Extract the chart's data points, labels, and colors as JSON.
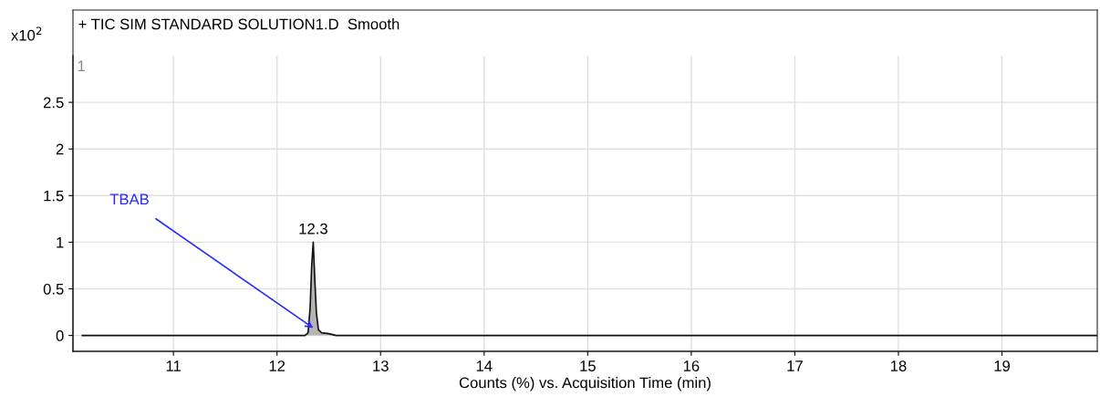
{
  "chart_data": {
    "type": "area",
    "title": "+ TIC SIM STANDARD SOLUTION1.D  Smooth",
    "xlabel": "Counts (%) vs. Acquisition Time (min)",
    "ylabel": "x10$^{2}$",
    "x": [
      10.12,
      12.27,
      12.3,
      12.32,
      12.335,
      12.35,
      12.365,
      12.38,
      12.4,
      12.43,
      12.5,
      12.57,
      19.92
    ],
    "series": [
      {
        "color": "#b4b4b4",
        "values": [
          0,
          0,
          0.03,
          0.3,
          0.75,
          1.0,
          0.6,
          0.25,
          0.06,
          0.03,
          0.02,
          0,
          0
        ]
      }
    ],
    "xlim": [
      10.03,
      19.92
    ],
    "ylim": [
      -0.17,
      3.0
    ],
    "xticks": [
      11,
      12,
      13,
      14,
      15,
      16,
      17,
      18,
      19
    ],
    "yticks": [
      0,
      0.5,
      1,
      1.5,
      2,
      2.5
    ],
    "grid": true,
    "annotations": [
      "1",
      {
        "text": "12.3",
        "x": 12.35,
        "y": 1.0
      },
      {
        "text": "TBAB",
        "x": 12.35,
        "y": 0.08
      }
    ]
  }
}
